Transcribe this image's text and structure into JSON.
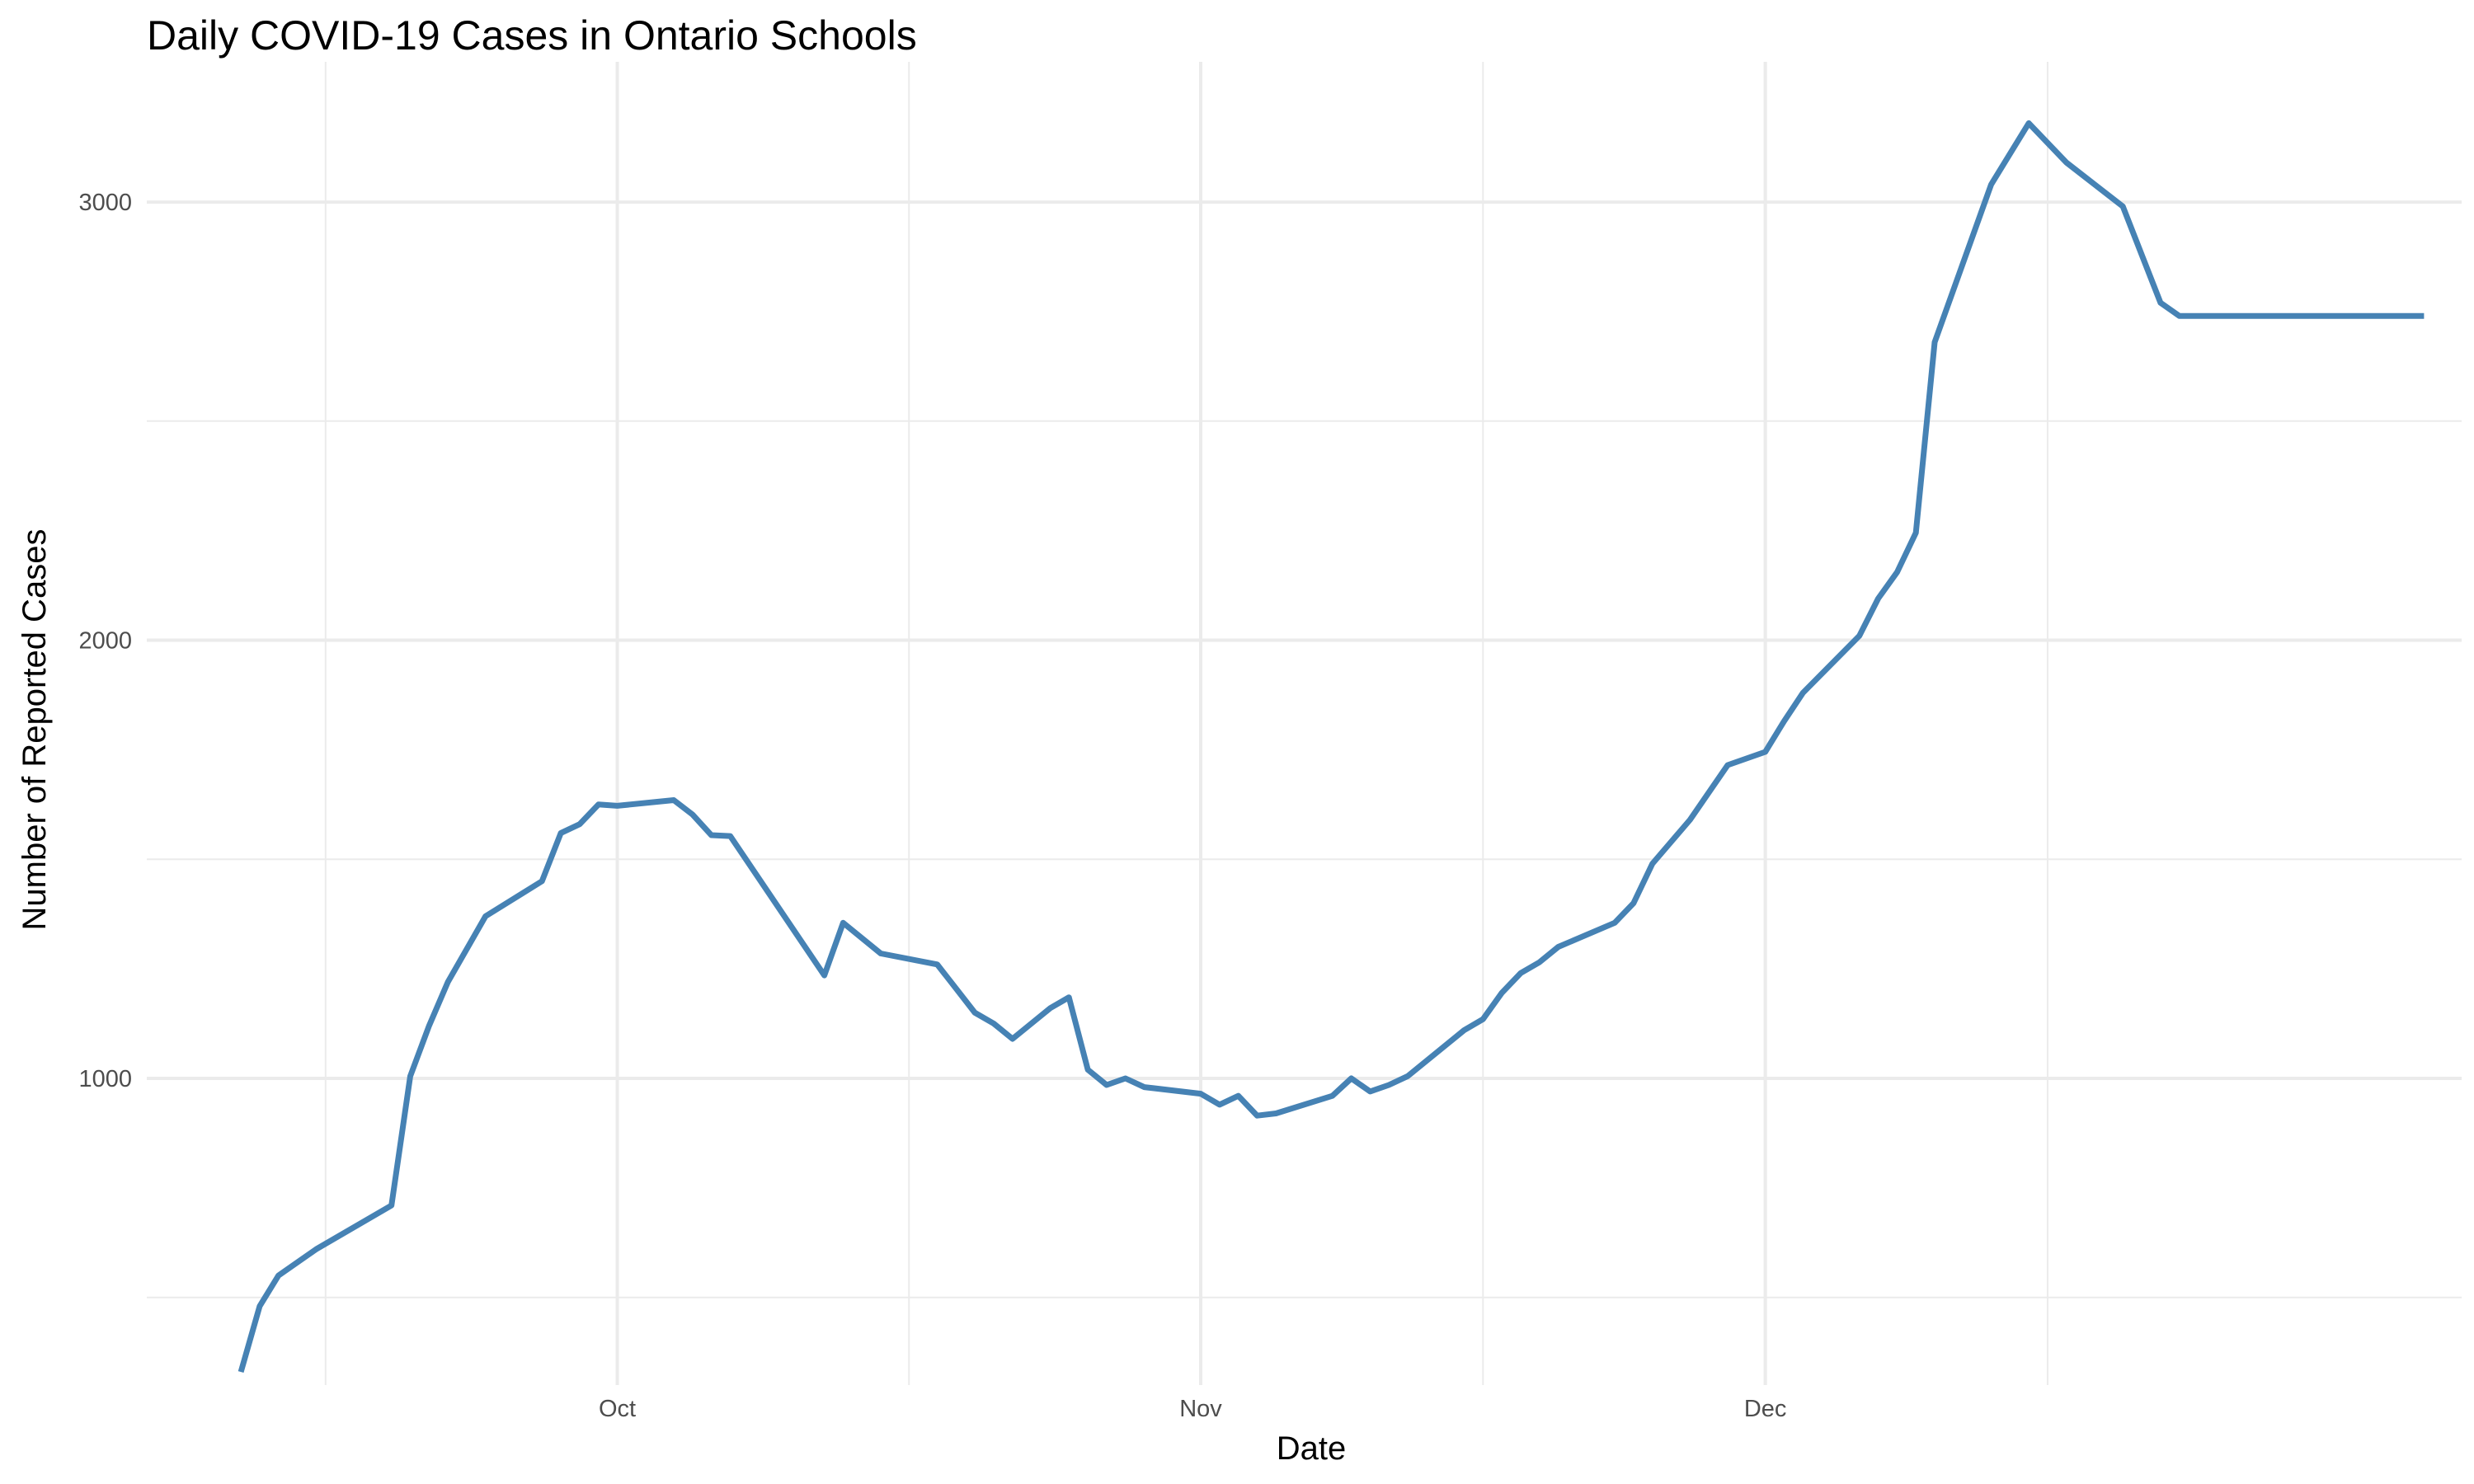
{
  "chart_data": {
    "type": "line",
    "title": "Daily COVID-19 Cases in Ontario Schools",
    "xlabel": "Date",
    "ylabel": "Number of Reported Cases",
    "x_ticks": [
      {
        "date": "2021-10-01",
        "label": "Oct"
      },
      {
        "date": "2021-11-01",
        "label": "Nov"
      },
      {
        "date": "2021-12-01",
        "label": "Dec"
      }
    ],
    "y_ticks": [
      1000,
      2000,
      3000
    ],
    "xlim": [
      "2021-09-06",
      "2022-01-07"
    ],
    "ylim": [
      300,
      3320
    ],
    "grid": true,
    "line_color": "#4682B4",
    "series": [
      {
        "x": [
          "2021-09-11",
          "2021-09-12",
          "2021-09-13",
          "2021-09-15",
          "2021-09-19",
          "2021-09-20",
          "2021-09-21",
          "2021-09-22",
          "2021-09-24",
          "2021-09-27",
          "2021-09-28",
          "2021-09-29",
          "2021-09-30",
          "2021-10-01",
          "2021-10-04",
          "2021-10-05",
          "2021-10-06",
          "2021-10-07",
          "2021-10-12",
          "2021-10-13",
          "2021-10-15",
          "2021-10-18",
          "2021-10-19",
          "2021-10-20",
          "2021-10-21",
          "2021-10-22",
          "2021-10-24",
          "2021-10-25",
          "2021-10-26",
          "2021-10-27",
          "2021-10-28",
          "2021-10-29",
          "2021-11-01",
          "2021-11-02",
          "2021-11-03",
          "2021-11-04",
          "2021-11-05",
          "2021-11-08",
          "2021-11-09",
          "2021-11-10",
          "2021-11-11",
          "2021-11-12",
          "2021-11-15",
          "2021-11-16",
          "2021-11-17",
          "2021-11-18",
          "2021-11-19",
          "2021-11-20",
          "2021-11-23",
          "2021-11-24",
          "2021-11-25",
          "2021-11-26",
          "2021-11-27",
          "2021-11-29",
          "2021-12-01",
          "2021-12-02",
          "2021-12-03",
          "2021-12-06",
          "2021-12-07",
          "2021-12-08",
          "2021-12-09",
          "2021-12-10",
          "2021-12-13",
          "2021-12-15",
          "2021-12-17",
          "2021-12-20",
          "2021-12-21",
          "2021-12-22",
          "2021-12-23",
          "2021-12-24",
          "2021-12-27",
          "2021-12-28",
          "2021-12-29",
          "2021-12-30",
          "2021-12-31",
          "2022-01-01",
          "2022-01-02",
          "2022-01-03",
          "2022-01-04",
          "2022-01-05"
        ],
        "y": [
          330,
          480,
          550,
          610,
          710,
          1005,
          1120,
          1220,
          1370,
          1450,
          1560,
          1580,
          1625,
          1622,
          1635,
          1602,
          1555,
          1553,
          1235,
          1355,
          1285,
          1260,
          1205,
          1150,
          1125,
          1090,
          1160,
          1185,
          1020,
          985,
          1000,
          980,
          965,
          940,
          960,
          915,
          920,
          960,
          1000,
          970,
          985,
          1005,
          1110,
          1135,
          1195,
          1240,
          1265,
          1300,
          1355,
          1400,
          1490,
          1540,
          1590,
          1715,
          1745,
          1815,
          1880,
          2010,
          2095,
          2155,
          2245,
          2680,
          3040,
          3180,
          3090,
          2990,
          2880,
          2770,
          2740,
          2740,
          2740,
          2740,
          2740,
          2740,
          2740,
          2740,
          2740,
          2740,
          2740,
          2740
        ]
      }
    ]
  }
}
